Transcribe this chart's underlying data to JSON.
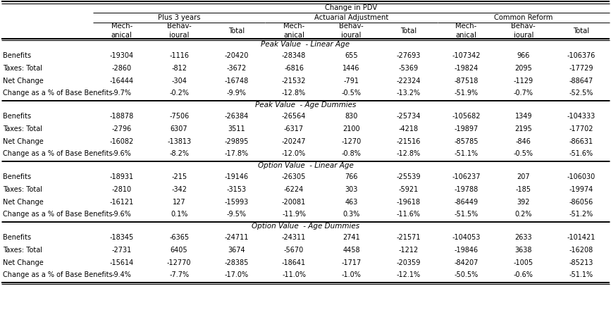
{
  "section_headers": [
    "Peak Value  - Linear Age",
    "Peak Value  - Age Dummies",
    "Option Value  - Linear Age",
    "Option Value  - Age Dummies"
  ],
  "row_labels": [
    "Benefits",
    "Taxes: Total",
    "Net Change",
    "Change as a % of Base Benefits"
  ],
  "data": {
    "Peak Value  - Linear Age": [
      [
        "-19304",
        "-1116",
        "-20420",
        "-28348",
        "655",
        "-27693",
        "-107342",
        "966",
        "-106376"
      ],
      [
        "-2860",
        "-812",
        "-3672",
        "-6816",
        "1446",
        "-5369",
        "-19824",
        "2095",
        "-17729"
      ],
      [
        "-16444",
        "-304",
        "-16748",
        "-21532",
        "-791",
        "-22324",
        "-87518",
        "-1129",
        "-88647"
      ],
      [
        "-9.7%",
        "-0.2%",
        "-9.9%",
        "-12.8%",
        "-0.5%",
        "-13.2%",
        "-51.9%",
        "-0.7%",
        "-52.5%"
      ]
    ],
    "Peak Value  - Age Dummies": [
      [
        "-18878",
        "-7506",
        "-26384",
        "-26564",
        "830",
        "-25734",
        "-105682",
        "1349",
        "-104333"
      ],
      [
        "-2796",
        "6307",
        "3511",
        "-6317",
        "2100",
        "-4218",
        "-19897",
        "2195",
        "-17702"
      ],
      [
        "-16082",
        "-13813",
        "-29895",
        "-20247",
        "-1270",
        "-21516",
        "-85785",
        "-846",
        "-86631"
      ],
      [
        "-9.6%",
        "-8.2%",
        "-17.8%",
        "-12.0%",
        "-0.8%",
        "-12.8%",
        "-51.1%",
        "-0.5%",
        "-51.6%"
      ]
    ],
    "Option Value  - Linear Age": [
      [
        "-18931",
        "-215",
        "-19146",
        "-26305",
        "766",
        "-25539",
        "-106237",
        "207",
        "-106030"
      ],
      [
        "-2810",
        "-342",
        "-3153",
        "-6224",
        "303",
        "-5921",
        "-19788",
        "-185",
        "-19974"
      ],
      [
        "-16121",
        "127",
        "-15993",
        "-20081",
        "463",
        "-19618",
        "-86449",
        "392",
        "-86056"
      ],
      [
        "-9.6%",
        "0.1%",
        "-9.5%",
        "-11.9%",
        "0.3%",
        "-11.6%",
        "-51.5%",
        "0.2%",
        "-51.2%"
      ]
    ],
    "Option Value  - Age Dummies": [
      [
        "-18345",
        "-6365",
        "-24711",
        "-24311",
        "2741",
        "-21571",
        "-104053",
        "2633",
        "-101421"
      ],
      [
        "-2731",
        "6405",
        "3674",
        "-5670",
        "4458",
        "-1212",
        "-19846",
        "3638",
        "-16208"
      ],
      [
        "-15614",
        "-12770",
        "-28385",
        "-18641",
        "-1717",
        "-20359",
        "-84207",
        "-1005",
        "-85213"
      ],
      [
        "-9.4%",
        "-7.7%",
        "-17.0%",
        "-11.0%",
        "-1.0%",
        "-12.1%",
        "-50.5%",
        "-0.6%",
        "-51.1%"
      ]
    ]
  },
  "bg_color": "white",
  "text_color": "black",
  "fs_tiny": 6.5,
  "fs_data": 7.0,
  "fs_header": 7.2,
  "fs_section": 7.5
}
